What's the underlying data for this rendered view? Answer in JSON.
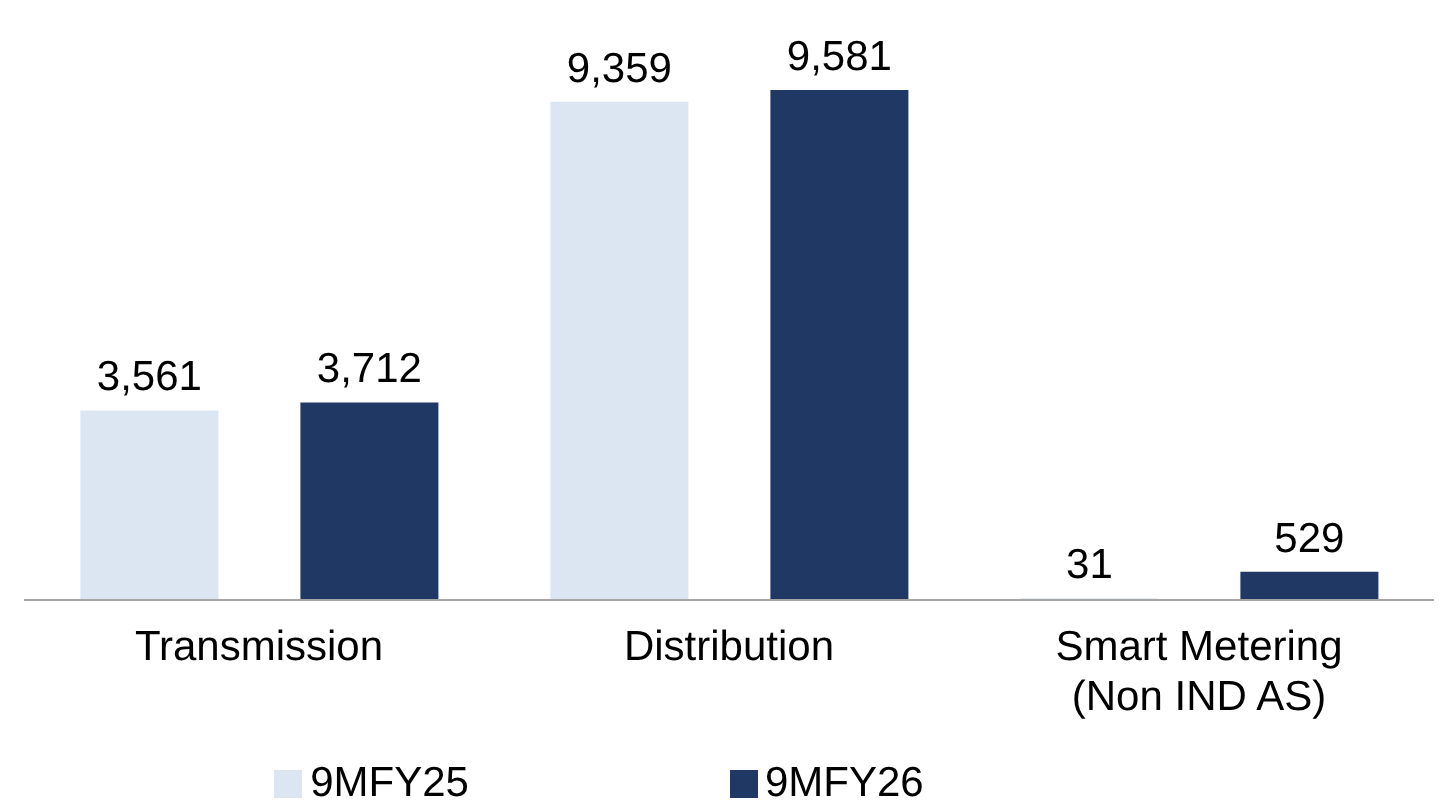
{
  "chart_data": {
    "type": "bar",
    "categories": [
      "Transmission",
      "Distribution",
      "Smart Metering\n(Non IND AS)"
    ],
    "series": [
      {
        "name": "9MFY25",
        "color": "#dce6f2",
        "values": [
          3561,
          9359,
          31
        ],
        "value_labels": [
          "3,561",
          "9,359",
          "31"
        ]
      },
      {
        "name": "9MFY26",
        "color": "#203864",
        "values": [
          3712,
          9581,
          529
        ],
        "value_labels": [
          "3,712",
          "9,581",
          "529"
        ]
      }
    ],
    "legend": "bottom",
    "grid": false
  }
}
